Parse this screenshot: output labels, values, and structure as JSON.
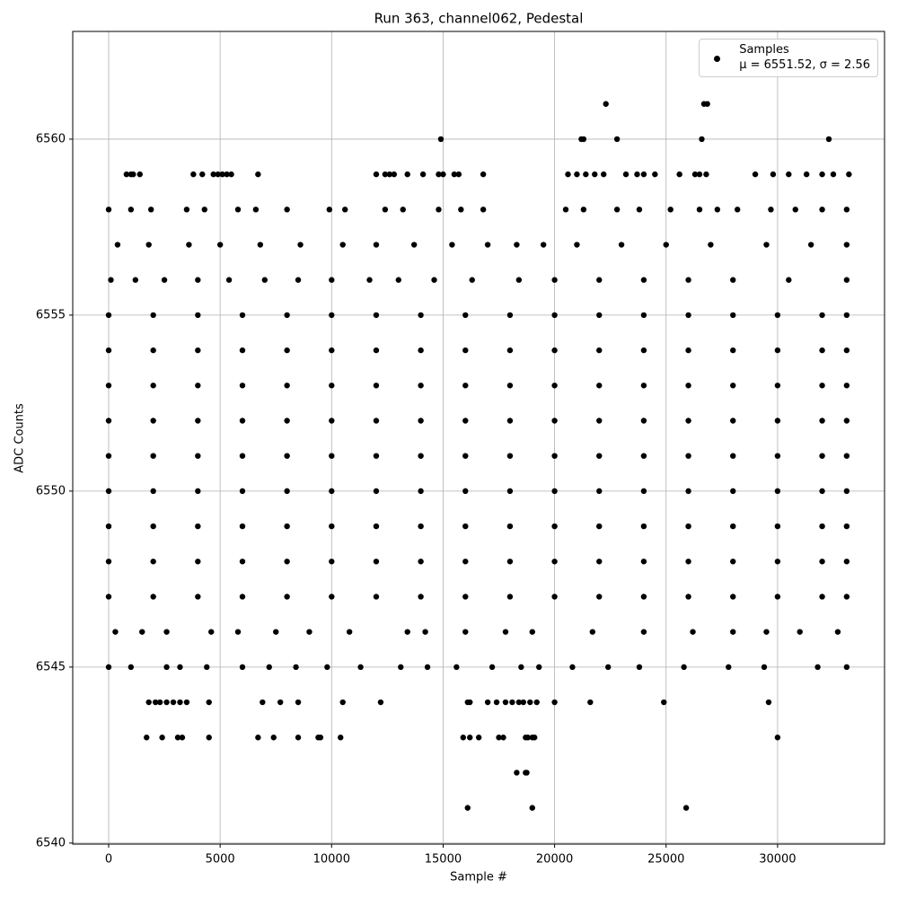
{
  "chart_data": {
    "type": "scatter",
    "title": "Run 363, channel062, Pedestal",
    "x_label": "Sample #",
    "y_label": "ADC Counts",
    "xlim": [
      -1611,
      34797
    ],
    "ylim": [
      6539.97,
      6563.06
    ],
    "xticks": [
      0,
      5000,
      10000,
      15000,
      20000,
      25000,
      30000
    ],
    "yticks": [
      6540,
      6545,
      6550,
      6555,
      6560
    ],
    "grid": true,
    "legend": "upper right",
    "series": [
      {
        "name": "Samples\nμ = 6551.52, σ = 2.56",
        "color": "#000000",
        "x": [
          0,
          2000,
          4000,
          6000,
          8000,
          10000,
          12000,
          14000,
          16000,
          18000,
          20000,
          22000,
          24000,
          26000,
          28000,
          30000,
          32000,
          33100,
          0,
          2000,
          4000,
          6000,
          8000,
          10000,
          12000,
          14000,
          16000,
          18000,
          20000,
          22000,
          24000,
          26000,
          28000,
          30000,
          32000,
          33100,
          0,
          2000,
          4000,
          6000,
          8000,
          10000,
          12000,
          14000,
          16000,
          18000,
          20000,
          22000,
          24000,
          26000,
          28000,
          30000,
          32000,
          33100,
          0,
          2000,
          4000,
          6000,
          8000,
          10000,
          12000,
          14000,
          16000,
          18000,
          20000,
          22000,
          24000,
          26000,
          28000,
          30000,
          32000,
          33100,
          0,
          2000,
          4000,
          6000,
          8000,
          10000,
          12000,
          14000,
          16000,
          18000,
          20000,
          22000,
          24000,
          26000,
          28000,
          30000,
          32000,
          33100,
          0,
          2000,
          4000,
          6000,
          8000,
          10000,
          12000,
          14000,
          16000,
          18000,
          20000,
          22000,
          24000,
          26000,
          28000,
          30000,
          32000,
          33100,
          0,
          2000,
          4000,
          6000,
          8000,
          10000,
          12000,
          14000,
          16000,
          18000,
          20000,
          22000,
          24000,
          26000,
          28000,
          30000,
          32000,
          33100,
          0,
          2000,
          4000,
          6000,
          8000,
          10000,
          12000,
          14000,
          16000,
          18000,
          20000,
          22000,
          24000,
          26000,
          28000,
          30000,
          32000,
          33100,
          0,
          2000,
          4000,
          6000,
          8000,
          10000,
          12000,
          14000,
          16000,
          18000,
          20000,
          22000,
          24000,
          26000,
          28000,
          30000,
          32000,
          33100,
          300,
          1500,
          2600,
          4600,
          5800,
          7500,
          9000,
          10800,
          13400,
          14200,
          16000,
          17800,
          19000,
          21700,
          24000,
          26200,
          28000,
          29500,
          31000,
          32700,
          0,
          1000,
          2600,
          3200,
          4400,
          6000,
          7200,
          8400,
          9800,
          11300,
          13100,
          14300,
          15600,
          17200,
          18500,
          19300,
          20800,
          22400,
          23800,
          25800,
          27800,
          29400,
          31800,
          33100,
          100,
          1200,
          2500,
          4000,
          5400,
          7000,
          8500,
          10000,
          11700,
          13000,
          14600,
          16300,
          18400,
          20000,
          22000,
          24000,
          26000,
          28000,
          30500,
          33100,
          400,
          1800,
          3600,
          5000,
          6800,
          8600,
          10500,
          12000,
          13700,
          15400,
          17000,
          18300,
          19500,
          21000,
          23000,
          25000,
          27000,
          29500,
          31500,
          33100,
          0,
          1000,
          1900,
          3500,
          4300,
          5800,
          6600,
          8000,
          9900,
          10600,
          12400,
          13200,
          14800,
          15800,
          16800,
          20500,
          21300,
          22800,
          23800,
          25200,
          26500,
          27300,
          28200,
          29700,
          30800,
          32000,
          33100,
          800,
          1000,
          1100,
          1400,
          3800,
          4200,
          4700,
          4900,
          5100,
          5300,
          5500,
          6700,
          12000,
          12400,
          12600,
          12800,
          13400,
          14100,
          14800,
          15000,
          15500,
          15700,
          16800,
          20600,
          21000,
          21400,
          21800,
          22200,
          23200,
          23700,
          24000,
          24500,
          25600,
          26300,
          26500,
          26800,
          29000,
          29800,
          30500,
          31300,
          32000,
          32500,
          33200,
          14900,
          21200,
          21300,
          22800,
          26600,
          32300,
          22300,
          26700,
          26850,
          1800,
          2100,
          2300,
          2600,
          2900,
          3200,
          3500,
          4500,
          6900,
          7700,
          8500,
          10500,
          12200,
          16100,
          16200,
          17000,
          17400,
          17800,
          18100,
          18400,
          18600,
          18900,
          19200,
          20000,
          21600,
          24900,
          29600,
          1700,
          2400,
          3100,
          3300,
          4500,
          6700,
          7400,
          8500,
          9400,
          9500,
          10400,
          15900,
          16200,
          16600,
          17500,
          17700,
          18700,
          18800,
          19000,
          19100,
          30000,
          18300,
          18700,
          18750,
          16100,
          19000,
          25900
        ],
        "y": [
          6548,
          6548,
          6548,
          6548,
          6548,
          6548,
          6548,
          6548,
          6548,
          6548,
          6548,
          6548,
          6548,
          6548,
          6548,
          6548,
          6548,
          6548,
          6549,
          6549,
          6549,
          6549,
          6549,
          6549,
          6549,
          6549,
          6549,
          6549,
          6549,
          6549,
          6549,
          6549,
          6549,
          6549,
          6549,
          6549,
          6550,
          6550,
          6550,
          6550,
          6550,
          6550,
          6550,
          6550,
          6550,
          6550,
          6550,
          6550,
          6550,
          6550,
          6550,
          6550,
          6550,
          6550,
          6551,
          6551,
          6551,
          6551,
          6551,
          6551,
          6551,
          6551,
          6551,
          6551,
          6551,
          6551,
          6551,
          6551,
          6551,
          6551,
          6551,
          6551,
          6552,
          6552,
          6552,
          6552,
          6552,
          6552,
          6552,
          6552,
          6552,
          6552,
          6552,
          6552,
          6552,
          6552,
          6552,
          6552,
          6552,
          6552,
          6553,
          6553,
          6553,
          6553,
          6553,
          6553,
          6553,
          6553,
          6553,
          6553,
          6553,
          6553,
          6553,
          6553,
          6553,
          6553,
          6553,
          6553,
          6554,
          6554,
          6554,
          6554,
          6554,
          6554,
          6554,
          6554,
          6554,
          6554,
          6554,
          6554,
          6554,
          6554,
          6554,
          6554,
          6554,
          6554,
          6555,
          6555,
          6555,
          6555,
          6555,
          6555,
          6555,
          6555,
          6555,
          6555,
          6555,
          6555,
          6555,
          6555,
          6555,
          6555,
          6555,
          6555,
          6547,
          6547,
          6547,
          6547,
          6547,
          6547,
          6547,
          6547,
          6547,
          6547,
          6547,
          6547,
          6547,
          6547,
          6547,
          6547,
          6547,
          6547,
          6546,
          6546,
          6546,
          6546,
          6546,
          6546,
          6546,
          6546,
          6546,
          6546,
          6546,
          6546,
          6546,
          6546,
          6546,
          6546,
          6546,
          6546,
          6546,
          6546,
          6545,
          6545,
          6545,
          6545,
          6545,
          6545,
          6545,
          6545,
          6545,
          6545,
          6545,
          6545,
          6545,
          6545,
          6545,
          6545,
          6545,
          6545,
          6545,
          6545,
          6545,
          6545,
          6545,
          6545,
          6556,
          6556,
          6556,
          6556,
          6556,
          6556,
          6556,
          6556,
          6556,
          6556,
          6556,
          6556,
          6556,
          6556,
          6556,
          6556,
          6556,
          6556,
          6556,
          6556,
          6557,
          6557,
          6557,
          6557,
          6557,
          6557,
          6557,
          6557,
          6557,
          6557,
          6557,
          6557,
          6557,
          6557,
          6557,
          6557,
          6557,
          6557,
          6557,
          6557,
          6558,
          6558,
          6558,
          6558,
          6558,
          6558,
          6558,
          6558,
          6558,
          6558,
          6558,
          6558,
          6558,
          6558,
          6558,
          6558,
          6558,
          6558,
          6558,
          6558,
          6558,
          6558,
          6558,
          6558,
          6558,
          6558,
          6558,
          6559,
          6559,
          6559,
          6559,
          6559,
          6559,
          6559,
          6559,
          6559,
          6559,
          6559,
          6559,
          6559,
          6559,
          6559,
          6559,
          6559,
          6559,
          6559,
          6559,
          6559,
          6559,
          6559,
          6559,
          6559,
          6559,
          6559,
          6559,
          6559,
          6559,
          6559,
          6559,
          6559,
          6559,
          6559,
          6559,
          6559,
          6559,
          6559,
          6559,
          6559,
          6559,
          6559,
          6560,
          6560,
          6560,
          6560,
          6560,
          6560,
          6561,
          6561,
          6561,
          6544,
          6544,
          6544,
          6544,
          6544,
          6544,
          6544,
          6544,
          6544,
          6544,
          6544,
          6544,
          6544,
          6544,
          6544,
          6544,
          6544,
          6544,
          6544,
          6544,
          6544,
          6544,
          6544,
          6544,
          6544,
          6544,
          6544,
          6543,
          6543,
          6543,
          6543,
          6543,
          6543,
          6543,
          6543,
          6543,
          6543,
          6543,
          6543,
          6543,
          6543,
          6543,
          6543,
          6543,
          6543,
          6543,
          6543,
          6543,
          6542,
          6542,
          6542,
          6541,
          6541,
          6541
        ]
      }
    ]
  }
}
